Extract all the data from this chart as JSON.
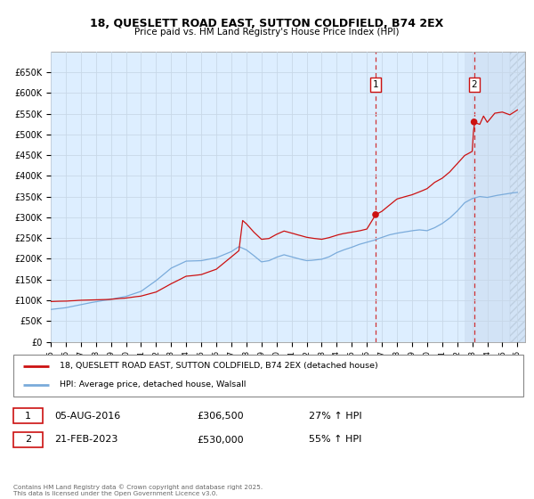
{
  "title": "18, QUESLETT ROAD EAST, SUTTON COLDFIELD, B74 2EX",
  "subtitle": "Price paid vs. HM Land Registry's House Price Index (HPI)",
  "ylim": [
    0,
    700000
  ],
  "yticks": [
    0,
    50000,
    100000,
    150000,
    200000,
    250000,
    300000,
    350000,
    400000,
    450000,
    500000,
    550000,
    600000,
    650000
  ],
  "ytick_labels": [
    "£0",
    "£50K",
    "£100K",
    "£150K",
    "£200K",
    "£250K",
    "£300K",
    "£350K",
    "£400K",
    "£450K",
    "£500K",
    "£550K",
    "£600K",
    "£650K"
  ],
  "xlim_start": 1995.0,
  "xlim_end": 2026.5,
  "plot_bg_color": "#ddeeff",
  "grid_color": "#c8d8e8",
  "line1_color": "#cc1111",
  "line2_color": "#7aabdb",
  "shade_start": 2022.5,
  "event1_x": 2016.58,
  "event1_y": 306500,
  "event2_x": 2023.12,
  "event2_y": 530000,
  "legend_label1": "18, QUESLETT ROAD EAST, SUTTON COLDFIELD, B74 2EX (detached house)",
  "legend_label2": "HPI: Average price, detached house, Walsall",
  "transaction1_label": "1",
  "transaction1_date": "05-AUG-2016",
  "transaction1_price": "£306,500",
  "transaction1_hpi": "27% ↑ HPI",
  "transaction2_label": "2",
  "transaction2_date": "21-FEB-2023",
  "transaction2_price": "£530,000",
  "transaction2_hpi": "55% ↑ HPI",
  "footer": "Contains HM Land Registry data © Crown copyright and database right 2025.\nThis data is licensed under the Open Government Licence v3.0."
}
